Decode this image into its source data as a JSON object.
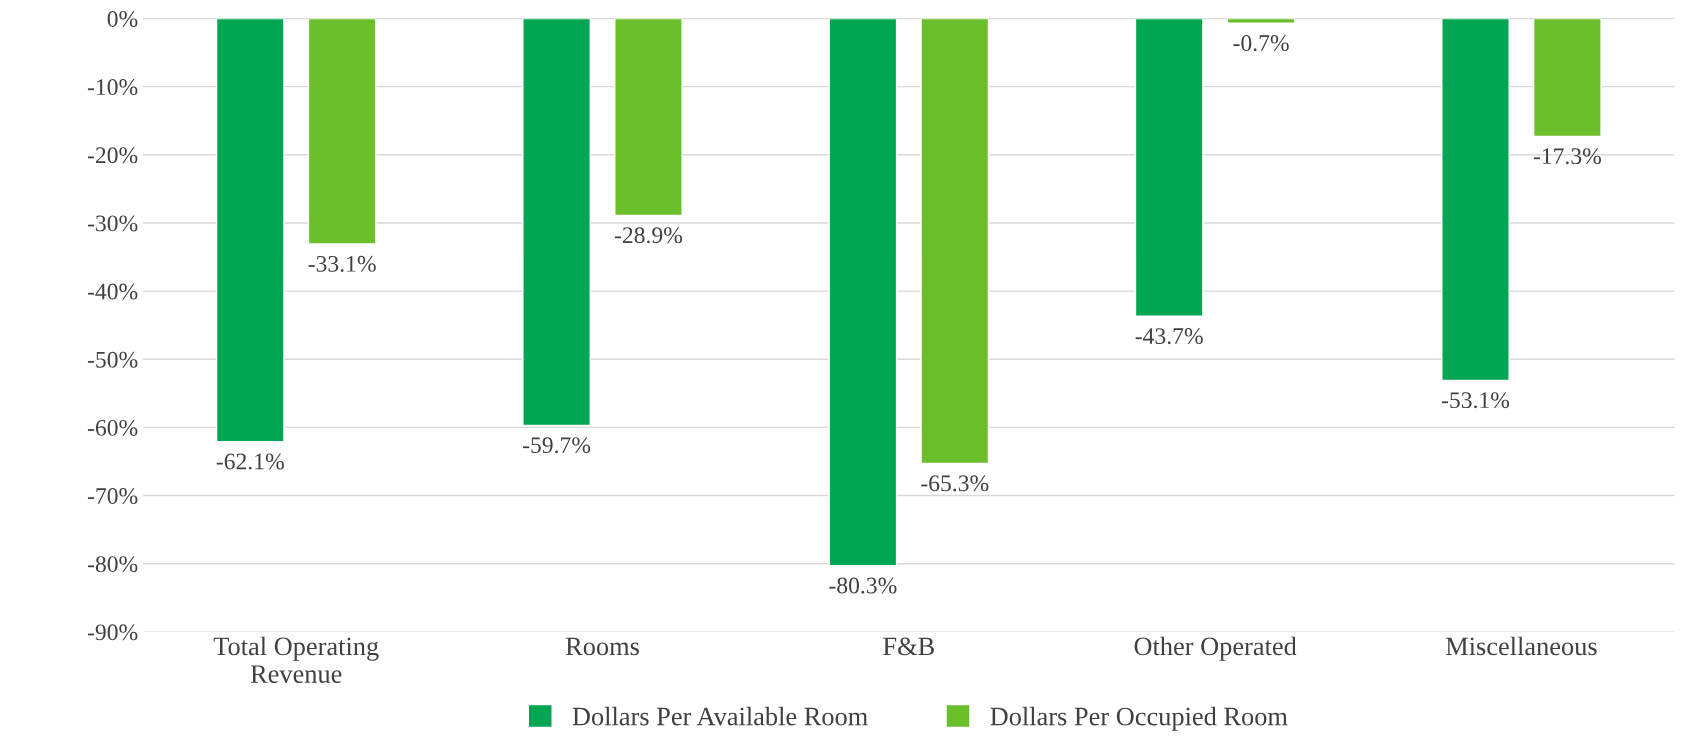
{
  "chart_data": {
    "type": "bar",
    "categories": [
      "Total Operating\nRevenue",
      "Rooms",
      "F&B",
      "Other Operated",
      "Miscellaneous"
    ],
    "series": [
      {
        "name": "Dollars Per Available Room",
        "color": "#00a651",
        "values": [
          -62.1,
          -59.7,
          -80.3,
          -43.7,
          -53.1
        ],
        "value_labels": [
          "-62.1%",
          "-59.7%",
          "-80.3%",
          "-43.7%",
          "-53.1%"
        ]
      },
      {
        "name": "Dollars Per Occupied Room",
        "color": "#6abf2b",
        "values": [
          -33.1,
          -28.9,
          -65.3,
          -0.7,
          -17.3
        ],
        "value_labels": [
          "-33.1%",
          "-28.9%",
          "-65.3%",
          "-0.7%",
          "-17.3%"
        ]
      }
    ],
    "ylim": [
      -90,
      0
    ],
    "yticks": [
      {
        "value": 0,
        "label": "0%"
      },
      {
        "value": -10,
        "label": "-10%"
      },
      {
        "value": -20,
        "label": "-20%"
      },
      {
        "value": -30,
        "label": "-30%"
      },
      {
        "value": -40,
        "label": "-40%"
      },
      {
        "value": -50,
        "label": "-50%"
      },
      {
        "value": -60,
        "label": "-60%"
      },
      {
        "value": -70,
        "label": "-70%"
      },
      {
        "value": -80,
        "label": "-80%"
      },
      {
        "value": -90,
        "label": "-90%"
      }
    ],
    "grid": "y",
    "legend": "bottom"
  }
}
